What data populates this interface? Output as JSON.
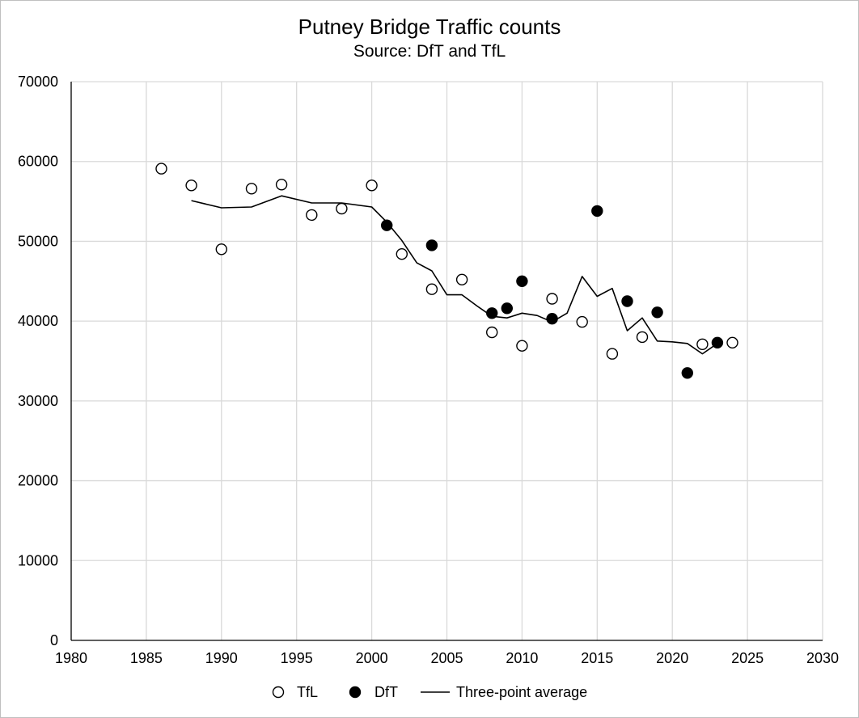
{
  "chart_data": {
    "type": "scatter",
    "title": "Putney Bridge Traffic counts",
    "subtitle": "Source: DfT and TfL",
    "xlabel": "",
    "ylabel": "",
    "xlim": [
      1980,
      2030
    ],
    "ylim": [
      0,
      70000
    ],
    "x_ticks": [
      "1980",
      "1985",
      "1990",
      "1995",
      "2000",
      "2005",
      "2010",
      "2015",
      "2020",
      "2025",
      "2030"
    ],
    "y_ticks": [
      "0",
      "10000",
      "20000",
      "30000",
      "40000",
      "50000",
      "60000",
      "70000"
    ],
    "grid": true,
    "legend_position": "bottom",
    "series": [
      {
        "name": "TfL",
        "marker": "open-circle",
        "color": "#000000",
        "points": [
          [
            1986,
            59100
          ],
          [
            1988,
            57000
          ],
          [
            1990,
            49000
          ],
          [
            1992,
            56600
          ],
          [
            1994,
            57100
          ],
          [
            1996,
            53300
          ],
          [
            1998,
            54100
          ],
          [
            2000,
            57000
          ],
          [
            2002,
            48400
          ],
          [
            2004,
            44000
          ],
          [
            2006,
            45200
          ],
          [
            2008,
            38600
          ],
          [
            2010,
            36900
          ],
          [
            2012,
            42800
          ],
          [
            2014,
            39900
          ],
          [
            2016,
            35900
          ],
          [
            2018,
            38000
          ],
          [
            2022,
            37100
          ],
          [
            2024,
            37300
          ]
        ]
      },
      {
        "name": "DfT",
        "marker": "filled-circle",
        "color": "#000000",
        "points": [
          [
            2001,
            52000
          ],
          [
            2004,
            49500
          ],
          [
            2008,
            41000
          ],
          [
            2009,
            41600
          ],
          [
            2010,
            45000
          ],
          [
            2012,
            40300
          ],
          [
            2015,
            53800
          ],
          [
            2017,
            42500
          ],
          [
            2019,
            41100
          ],
          [
            2021,
            33500
          ],
          [
            2023,
            37300
          ]
        ]
      },
      {
        "name": "Three-point average",
        "marker": "line",
        "color": "#000000",
        "points": [
          [
            1988,
            55100
          ],
          [
            1990,
            54200
          ],
          [
            1992,
            54300
          ],
          [
            1994,
            55700
          ],
          [
            1996,
            54800
          ],
          [
            1998,
            54800
          ],
          [
            2000,
            54300
          ],
          [
            2001,
            52400
          ],
          [
            2002,
            50100
          ],
          [
            2003,
            47300
          ],
          [
            2004,
            46300
          ],
          [
            2005,
            43300
          ],
          [
            2006,
            43300
          ],
          [
            2007,
            41900
          ],
          [
            2008,
            40600
          ],
          [
            2009,
            40400
          ],
          [
            2010,
            41000
          ],
          [
            2011,
            40700
          ],
          [
            2012,
            39900
          ],
          [
            2013,
            41000
          ],
          [
            2014,
            45600
          ],
          [
            2015,
            43100
          ],
          [
            2016,
            44100
          ],
          [
            2017,
            38800
          ],
          [
            2018,
            40400
          ],
          [
            2019,
            37500
          ],
          [
            2020,
            37400
          ],
          [
            2021,
            37200
          ],
          [
            2022,
            35900
          ],
          [
            2023,
            37200
          ]
        ]
      }
    ]
  }
}
